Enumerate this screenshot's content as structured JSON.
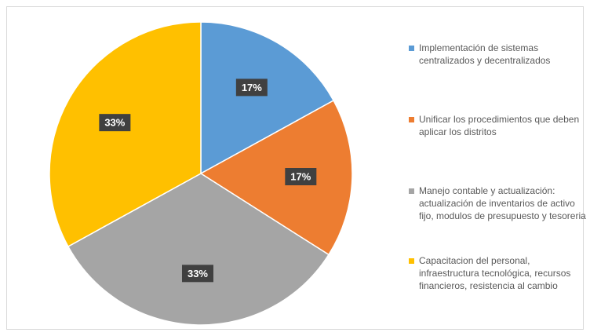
{
  "chart_data": {
    "type": "pie",
    "slices": [
      {
        "label": "Implementación de sistemas centralizados y decentralizados",
        "value": 17,
        "display": "17%",
        "color": "#5B9BD5"
      },
      {
        "label": "Unificar los procedimientos que deben aplicar los distritos",
        "value": 17,
        "display": "17%",
        "color": "#ED7D31"
      },
      {
        "label": "Manejo contable y actualización: actualización de inventarios de activo fijo, modulos de presupuesto y tesoreria",
        "value": 33,
        "display": "33%",
        "color": "#A5A5A5"
      },
      {
        "label": "Capacitacion del personal, infraestructura tecnológica, recursos financieros, resistencia al cambio",
        "value": 33,
        "display": "33%",
        "color": "#FFC000"
      }
    ],
    "start_angle": "12 o'clock",
    "direction": "clockwise",
    "legend_position": "right",
    "data_label_style": "dark box, white bold text"
  }
}
